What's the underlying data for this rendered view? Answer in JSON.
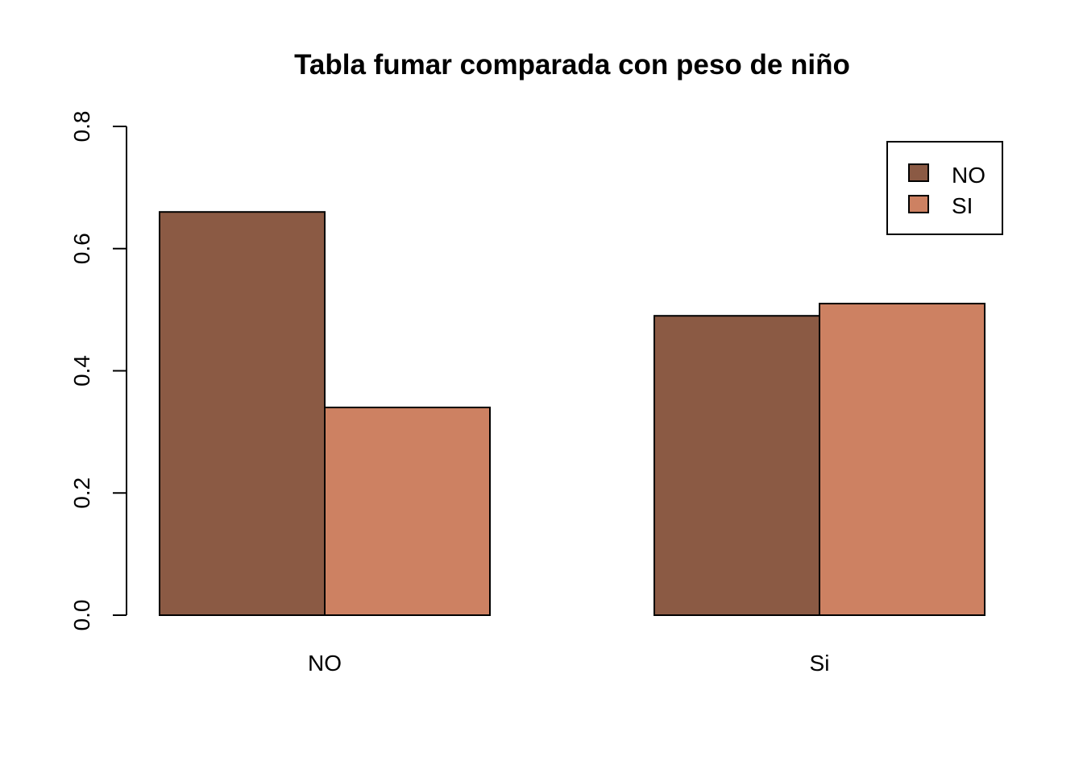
{
  "chart_data": {
    "type": "bar",
    "title": "Tabla fumar comparada con peso de niño",
    "xlabel": "",
    "ylabel": "",
    "categories": [
      "NO",
      "Si"
    ],
    "series": [
      {
        "name": "NO",
        "color": "#8B5A44",
        "values": [
          0.66,
          0.49
        ]
      },
      {
        "name": "SI",
        "color": "#CD8162",
        "values": [
          0.34,
          0.51
        ]
      }
    ],
    "ylim": [
      0,
      0.8
    ],
    "yticks": [
      "0.0",
      "0.2",
      "0.4",
      "0.6",
      "0.8"
    ],
    "grid": false,
    "legend_position": "top-right",
    "bar_mode": "grouped"
  }
}
